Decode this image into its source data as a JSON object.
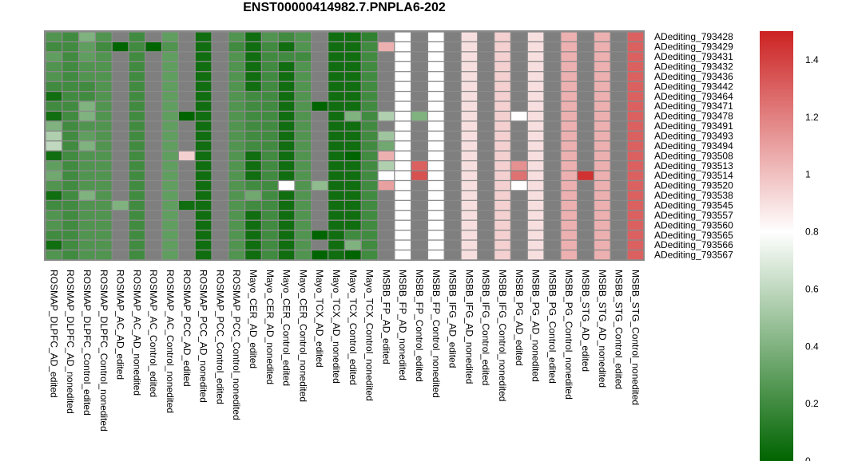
{
  "chart_data": {
    "type": "heatmap",
    "title": "ENST00000414982.7.PNPLA6-202",
    "columns": [
      "ROSMAP_DLPFC_AD_edited",
      "ROSMAP_DLPFC_AD_nonedited",
      "ROSMAP_DLPFC_Control_edited",
      "ROSMAP_DLPFC_Control_nonedited",
      "ROSMAP_AC_AD_edited",
      "ROSMAP_AC_AD_nonedited",
      "ROSMAP_AC_Control_edited",
      "ROSMAP_AC_Control_nonedited",
      "ROSMAP_PCC_AD_edited",
      "ROSMAP_PCC_AD_nonedited",
      "ROSMAP_PCC_Control_edited",
      "ROSMAP_PCC_Control_nonedited",
      "Mayo_CER_AD_edited",
      "Mayo_CER_AD_nonedited",
      "Mayo_CER_Control_edited",
      "Mayo_CER_Control_nonedited",
      "Mayo_TCX_AD_edited",
      "Mayo_TCX_AD_nonedited",
      "Mayo_TCX_Control_edited",
      "Mayo_TCX_Control_nonedited",
      "MSBB_FP_AD_edited",
      "MSBB_FP_AD_nonedited",
      "MSBB_FP_Control_edited",
      "MSBB_FP_Control_nonedited",
      "MSBB_IFG_AD_edited",
      "MSBB_IFG_AD_nonedited",
      "MSBB_IFG_Control_edited",
      "MSBB_IFG_Control_nonedited",
      "MSBB_PG_AD_edited",
      "MSBB_PG_AD_nonedited",
      "MSBB_PG_Control_edited",
      "MSBB_PG_Control_nonedited",
      "MSBB_STG_AD_edited",
      "MSBB_STG_AD_nonedited",
      "MSBB_STG_Control_edited",
      "MSBB_STG_Control_nonedited"
    ],
    "rows": [
      "ADediting_793428",
      "ADediting_793429",
      "ADediting_793431",
      "ADediting_793432",
      "ADediting_793436",
      "ADediting_793442",
      "ADediting_793464",
      "ADediting_793471",
      "ADediting_793478",
      "ADediting_793491",
      "ADediting_793493",
      "ADediting_793494",
      "ADediting_793508",
      "ADediting_793513",
      "ADediting_793514",
      "ADediting_793520",
      "ADediting_793538",
      "ADediting_793545",
      "ADediting_793557",
      "ADediting_793560",
      "ADediting_793565",
      "ADediting_793566",
      "ADediting_793567"
    ],
    "values": [
      [
        0.25,
        0.2,
        0.4,
        0.25,
        null,
        0.2,
        null,
        0.3,
        null,
        0.05,
        null,
        0.25,
        0.05,
        0.25,
        0.2,
        0.25,
        null,
        0.05,
        0.05,
        0.15,
        null,
        0.8,
        null,
        0.8,
        null,
        0.9,
        null,
        0.95,
        null,
        0.9,
        null,
        1.05,
        null,
        1.05,
        null,
        1.3
      ],
      [
        0.2,
        0.2,
        0.3,
        0.2,
        0.0,
        0.2,
        0.0,
        0.25,
        null,
        0.05,
        null,
        0.2,
        0.05,
        0.2,
        0.05,
        0.25,
        null,
        0.05,
        0.05,
        0.2,
        1.05,
        0.8,
        null,
        0.8,
        null,
        0.9,
        null,
        0.95,
        null,
        0.9,
        null,
        1.05,
        null,
        1.05,
        null,
        1.3
      ],
      [
        0.3,
        0.2,
        0.3,
        0.25,
        null,
        0.2,
        null,
        0.3,
        null,
        0.05,
        null,
        0.25,
        0.05,
        0.2,
        0.2,
        0.2,
        null,
        0.05,
        0.05,
        0.2,
        null,
        0.8,
        null,
        0.8,
        null,
        0.9,
        null,
        0.95,
        null,
        0.9,
        null,
        1.05,
        null,
        1.05,
        null,
        1.3
      ],
      [
        0.25,
        0.2,
        0.25,
        0.25,
        null,
        0.2,
        null,
        0.3,
        null,
        0.05,
        null,
        0.25,
        0.05,
        0.2,
        0.05,
        0.25,
        null,
        0.05,
        0.05,
        0.2,
        null,
        0.8,
        null,
        0.8,
        null,
        0.9,
        null,
        0.95,
        null,
        0.9,
        null,
        1.05,
        null,
        1.05,
        null,
        1.3
      ],
      [
        0.25,
        0.2,
        0.25,
        0.25,
        null,
        0.2,
        null,
        0.3,
        null,
        0.05,
        null,
        0.25,
        0.05,
        0.2,
        0.05,
        0.25,
        null,
        0.05,
        0.05,
        0.2,
        null,
        0.8,
        null,
        0.8,
        null,
        0.9,
        null,
        0.95,
        null,
        0.9,
        null,
        1.05,
        null,
        1.05,
        null,
        1.3
      ],
      [
        0.2,
        0.2,
        0.2,
        0.25,
        null,
        0.2,
        null,
        0.3,
        null,
        0.05,
        null,
        0.25,
        0.05,
        0.2,
        0.05,
        0.25,
        null,
        0.05,
        0.05,
        0.2,
        null,
        0.8,
        null,
        0.8,
        null,
        0.9,
        null,
        0.95,
        null,
        0.9,
        null,
        1.05,
        null,
        1.05,
        null,
        1.3
      ],
      [
        0.05,
        0.2,
        0.2,
        0.25,
        null,
        0.2,
        null,
        0.3,
        null,
        0.05,
        null,
        0.25,
        0.2,
        0.2,
        0.05,
        0.25,
        null,
        0.05,
        0.05,
        0.2,
        null,
        0.8,
        null,
        0.8,
        null,
        0.9,
        null,
        0.95,
        null,
        0.9,
        null,
        1.05,
        null,
        1.05,
        null,
        1.3
      ],
      [
        0.2,
        0.2,
        0.4,
        0.25,
        null,
        0.2,
        null,
        0.3,
        null,
        0.05,
        null,
        0.25,
        0.2,
        0.2,
        0.05,
        0.25,
        0.0,
        0.05,
        0.05,
        0.2,
        null,
        0.8,
        null,
        0.8,
        null,
        0.9,
        null,
        0.95,
        null,
        0.9,
        null,
        1.05,
        null,
        1.05,
        null,
        1.3
      ],
      [
        0.05,
        0.2,
        0.4,
        0.25,
        null,
        0.2,
        null,
        0.3,
        0.0,
        0.05,
        null,
        0.25,
        0.2,
        0.2,
        0.05,
        0.25,
        null,
        0.05,
        0.4,
        0.2,
        0.55,
        0.8,
        0.4,
        0.8,
        null,
        0.9,
        null,
        0.95,
        0.8,
        0.9,
        null,
        1.05,
        null,
        1.05,
        null,
        1.3
      ],
      [
        0.4,
        0.2,
        0.25,
        0.25,
        null,
        0.2,
        null,
        0.3,
        null,
        0.05,
        null,
        0.25,
        0.2,
        0.2,
        0.05,
        0.25,
        null,
        0.05,
        0.05,
        0.2,
        null,
        0.8,
        null,
        0.8,
        null,
        0.9,
        null,
        0.95,
        null,
        0.9,
        null,
        1.05,
        null,
        1.05,
        null,
        1.3
      ],
      [
        0.55,
        0.2,
        0.3,
        0.25,
        null,
        0.2,
        null,
        0.3,
        null,
        0.05,
        null,
        0.25,
        0.2,
        0.2,
        0.05,
        0.25,
        null,
        0.05,
        0.05,
        0.2,
        0.5,
        0.8,
        null,
        0.8,
        null,
        0.9,
        null,
        0.95,
        null,
        0.9,
        null,
        1.05,
        null,
        1.05,
        null,
        1.3
      ],
      [
        0.6,
        0.2,
        0.4,
        0.25,
        null,
        0.2,
        null,
        0.3,
        null,
        0.05,
        null,
        0.25,
        0.2,
        0.2,
        0.05,
        0.25,
        null,
        0.05,
        0.05,
        0.2,
        0.35,
        0.8,
        null,
        0.8,
        null,
        0.9,
        null,
        0.95,
        null,
        0.9,
        null,
        1.05,
        null,
        1.05,
        null,
        1.3
      ],
      [
        0.05,
        0.2,
        0.25,
        0.25,
        null,
        0.2,
        null,
        0.3,
        0.95,
        0.05,
        null,
        0.25,
        0.05,
        0.2,
        0.05,
        0.25,
        null,
        0.05,
        0.0,
        0.2,
        1.05,
        0.8,
        null,
        0.8,
        null,
        0.9,
        null,
        0.95,
        null,
        0.9,
        null,
        1.05,
        null,
        1.05,
        null,
        1.3
      ],
      [
        0.3,
        0.2,
        0.25,
        0.25,
        null,
        0.2,
        null,
        0.3,
        null,
        0.05,
        null,
        0.25,
        0.05,
        0.2,
        0.05,
        0.25,
        null,
        0.05,
        0.05,
        0.2,
        0.55,
        0.8,
        1.3,
        0.8,
        null,
        0.9,
        null,
        0.95,
        1.15,
        0.9,
        null,
        1.05,
        null,
        1.05,
        null,
        1.3
      ],
      [
        0.35,
        0.2,
        0.25,
        0.25,
        null,
        0.2,
        null,
        0.3,
        null,
        0.05,
        null,
        0.25,
        0.05,
        0.2,
        0.05,
        0.25,
        null,
        0.05,
        0.05,
        0.2,
        0.8,
        0.8,
        1.35,
        0.8,
        null,
        0.9,
        null,
        0.95,
        1.25,
        0.9,
        null,
        1.05,
        1.45,
        1.05,
        null,
        1.3
      ],
      [
        0.25,
        0.2,
        0.25,
        0.25,
        null,
        0.2,
        null,
        0.3,
        null,
        0.05,
        null,
        0.25,
        0.2,
        0.2,
        0.8,
        0.25,
        0.45,
        0.05,
        0.05,
        0.2,
        1.1,
        0.8,
        null,
        0.8,
        null,
        0.9,
        null,
        0.95,
        0.8,
        0.9,
        null,
        1.05,
        null,
        1.05,
        null,
        1.3
      ],
      [
        0.05,
        0.2,
        0.4,
        0.25,
        null,
        0.2,
        null,
        0.3,
        null,
        0.05,
        null,
        0.25,
        0.35,
        0.2,
        0.05,
        0.25,
        null,
        0.05,
        0.05,
        0.2,
        null,
        0.8,
        null,
        0.8,
        null,
        0.9,
        null,
        0.95,
        null,
        0.9,
        null,
        1.05,
        null,
        1.05,
        null,
        1.3
      ],
      [
        0.2,
        0.2,
        0.25,
        0.25,
        0.4,
        0.2,
        null,
        0.3,
        0.05,
        0.05,
        null,
        0.25,
        0.2,
        0.2,
        0.05,
        0.25,
        null,
        0.05,
        0.05,
        0.2,
        null,
        0.8,
        null,
        0.8,
        null,
        0.9,
        null,
        0.95,
        null,
        0.9,
        null,
        1.05,
        null,
        1.05,
        null,
        1.3
      ],
      [
        0.25,
        0.2,
        0.25,
        0.25,
        null,
        0.2,
        null,
        0.3,
        null,
        0.05,
        null,
        0.25,
        0.05,
        0.2,
        0.05,
        0.25,
        null,
        0.05,
        0.05,
        0.2,
        null,
        0.8,
        null,
        0.8,
        null,
        0.9,
        null,
        0.95,
        null,
        0.9,
        null,
        1.05,
        null,
        1.05,
        null,
        1.3
      ],
      [
        0.25,
        0.2,
        0.25,
        0.25,
        null,
        0.2,
        null,
        0.3,
        null,
        0.05,
        null,
        0.25,
        0.05,
        0.2,
        0.05,
        0.25,
        null,
        0.05,
        0.05,
        0.2,
        null,
        0.8,
        null,
        0.8,
        null,
        0.9,
        null,
        0.95,
        null,
        0.9,
        null,
        1.05,
        null,
        1.05,
        null,
        1.3
      ],
      [
        0.2,
        0.2,
        0.25,
        0.25,
        null,
        0.2,
        null,
        0.3,
        null,
        0.05,
        null,
        0.25,
        0.05,
        0.2,
        0.05,
        0.25,
        0.0,
        0.05,
        0.2,
        0.2,
        null,
        0.8,
        null,
        0.8,
        null,
        0.9,
        null,
        0.95,
        null,
        0.9,
        null,
        1.05,
        null,
        1.05,
        null,
        1.3
      ],
      [
        0.05,
        0.2,
        0.25,
        0.25,
        null,
        0.2,
        null,
        0.3,
        null,
        0.05,
        null,
        0.25,
        0.05,
        0.2,
        0.05,
        0.25,
        null,
        0.05,
        0.4,
        0.2,
        null,
        0.8,
        null,
        0.8,
        null,
        0.9,
        null,
        0.95,
        null,
        0.9,
        null,
        1.05,
        null,
        1.05,
        null,
        1.3
      ],
      [
        0.25,
        0.2,
        0.25,
        0.25,
        null,
        0.2,
        null,
        0.3,
        null,
        0.05,
        null,
        0.25,
        0.05,
        0.2,
        0.05,
        0.25,
        0.0,
        0.05,
        0.0,
        0.2,
        null,
        0.8,
        null,
        0.8,
        null,
        0.9,
        null,
        0.95,
        null,
        0.9,
        null,
        1.05,
        null,
        1.05,
        null,
        1.3
      ]
    ],
    "missing_color": "#7f7f7f",
    "colorscale": {
      "min": 0,
      "mid": 0.8,
      "max": 1.5,
      "low_color": "#006400",
      "mid_color": "#ffffff",
      "high_color": "#cc2222",
      "ticks": [
        0,
        0.2,
        0.4,
        0.6,
        0.8,
        1,
        1.2,
        1.4
      ],
      "tick_labels": [
        "0",
        "0.2",
        "0.4",
        "0.6",
        "0.8",
        "1",
        "1.2",
        "1.4"
      ]
    },
    "legend_position": "right"
  }
}
